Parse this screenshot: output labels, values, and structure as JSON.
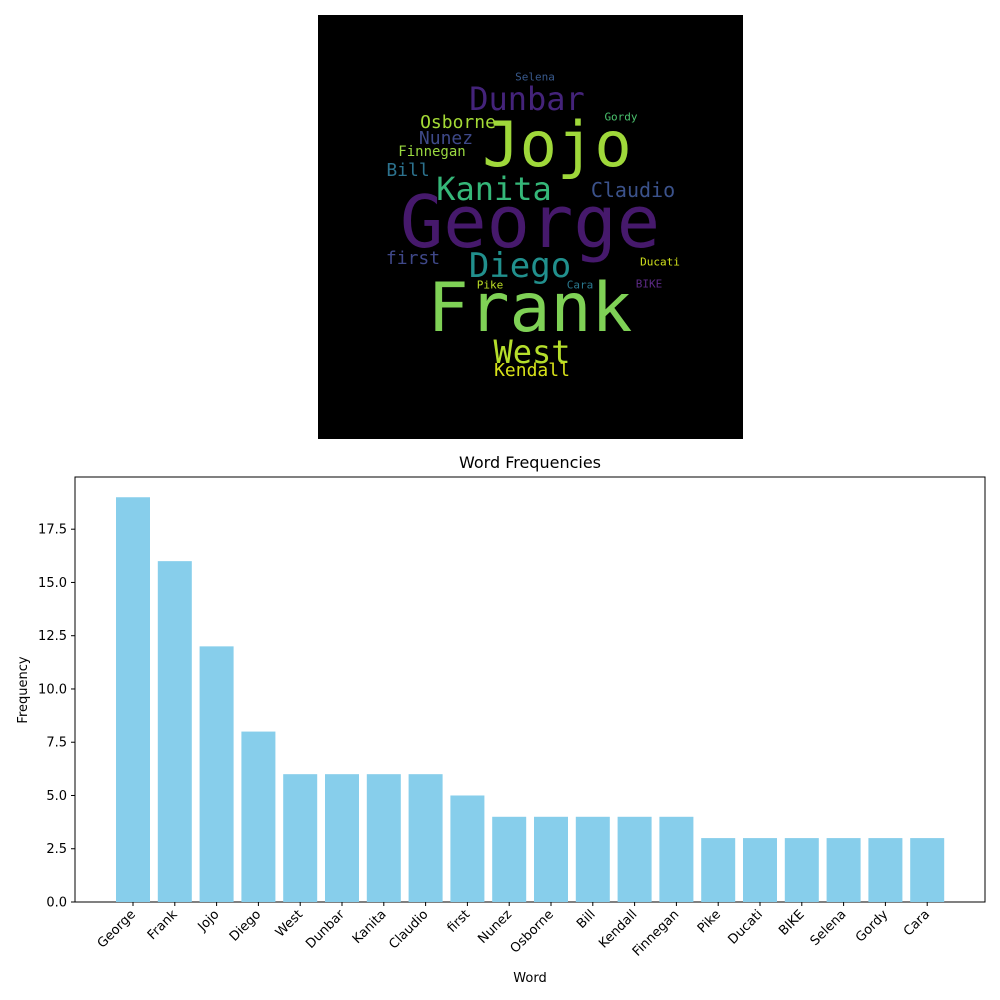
{
  "wordcloud": {
    "background": "#000000",
    "words": [
      {
        "text": "George",
        "color": "#46196c"
      },
      {
        "text": "Frank",
        "color": "#7fd156"
      },
      {
        "text": "Jojo",
        "color": "#9fd83a"
      },
      {
        "text": "Dunbar",
        "color": "#44237a"
      },
      {
        "text": "Kanita",
        "color": "#35b779"
      },
      {
        "text": "Diego",
        "color": "#21908d"
      },
      {
        "text": "West",
        "color": "#b5de2b"
      },
      {
        "text": "Claudio",
        "color": "#3b528b"
      },
      {
        "text": "Osborne",
        "color": "#a5db36"
      },
      {
        "text": "Nunez",
        "color": "#3e4989"
      },
      {
        "text": "Finnegan",
        "color": "#9ad940"
      },
      {
        "text": "Bill",
        "color": "#2c728e"
      },
      {
        "text": "first",
        "color": "#3f4889"
      },
      {
        "text": "Kendall",
        "color": "#d8e219"
      },
      {
        "text": "Selena",
        "color": "#38598c"
      },
      {
        "text": "Gordy",
        "color": "#4ac16d"
      },
      {
        "text": "Ducati",
        "color": "#d0e11c"
      },
      {
        "text": "Pike",
        "color": "#bddf26"
      },
      {
        "text": "Cara",
        "color": "#2a788e"
      },
      {
        "text": "BIKE",
        "color": "#5c2a86"
      }
    ]
  },
  "chart_data": {
    "type": "bar",
    "title": "Word Frequencies",
    "xlabel": "Word",
    "ylabel": "Frequency",
    "categories": [
      "George",
      "Frank",
      "Jojo",
      "Diego",
      "West",
      "Dunbar",
      "Kanita",
      "Claudio",
      "first",
      "Nunez",
      "Osborne",
      "Bill",
      "Kendall",
      "Finnegan",
      "Pike",
      "Ducati",
      "BIKE",
      "Selena",
      "Gordy",
      "Cara"
    ],
    "values": [
      19,
      16,
      12,
      8,
      6,
      6,
      6,
      6,
      5,
      4,
      4,
      4,
      4,
      4,
      3,
      3,
      3,
      3,
      3,
      3
    ],
    "yticks": [
      "0.0",
      "2.5",
      "5.0",
      "7.5",
      "10.0",
      "12.5",
      "15.0",
      "17.5"
    ],
    "ylim": [
      0,
      19.95
    ],
    "bar_color": "#87ceeb",
    "grid": false,
    "legend": "none"
  }
}
